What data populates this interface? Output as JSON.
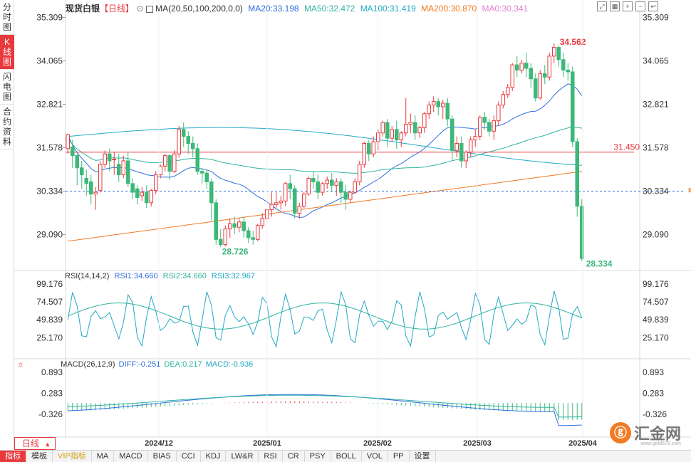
{
  "sidebar": [
    "分时图",
    "K线图",
    "闪电图",
    "合约资料"
  ],
  "active_tab": 1,
  "header": {
    "symbol": "现货白银",
    "period_tag": "【日线】",
    "ma_label": "MA(20,50,100,200,0,0)",
    "ma20": "MA20:33.198",
    "ma50": "MA50:32.472",
    "ma100": "MA100:31.419",
    "ma200": "MA200:30.870",
    "ma0": "MA0:30.341"
  },
  "price_axis": [
    "35.309",
    "34.065",
    "32.821",
    "31.578",
    "30.334",
    "29.090"
  ],
  "marks": {
    "high": "34.562",
    "low_left": "28.726",
    "low_right": "28.334",
    "hline": "31.450",
    "dline": "30.334"
  },
  "rsi": {
    "label": "RSI(14,14,2)",
    "rsi1": "RSI1:34.660",
    "rsi2": "RSI2:34.660",
    "rsi3": "RSI3:32.967",
    "axis": [
      "99.176",
      "74.507",
      "49.839",
      "25.170"
    ]
  },
  "macd": {
    "label": "MACD(26,12,9)",
    "diff": "DIFF:-0.251",
    "dea": "DEA:0.217",
    "macd": "MACD:-0.936",
    "axis": [
      "0.893",
      "0.283",
      "-0.326"
    ]
  },
  "dates": [
    "2024/12",
    "2025/01",
    "2025/02",
    "2025/03",
    "2025/04"
  ],
  "period_button": "日线",
  "indicator_bar": [
    "指标",
    "模板",
    "VIP指标",
    "MA",
    "MACD",
    "BIAS",
    "CCI",
    "KDJ",
    "LW&R",
    "RSI",
    "CR",
    "PSY",
    "BOLL",
    "VOL",
    "PP",
    "设置"
  ],
  "logo": {
    "text": "汇金网",
    "url": "www.gold678.com"
  },
  "colors": {
    "up": "#e8393d",
    "down": "#3cb878",
    "ma20": "#2f6fe0",
    "ma50": "#2fb3a0",
    "ma100": "#22a9c6",
    "ma200": "#f07b24",
    "ma0": "#e080d0",
    "accent": "#e8393d"
  },
  "chart_data": {
    "type": "candlestick",
    "candles": [
      [
        31.55,
        31.98,
        31.95,
        31.4
      ],
      [
        31.6,
        31.8,
        31.35,
        31.0
      ],
      [
        31.35,
        31.4,
        31.0,
        30.5
      ],
      [
        31.0,
        31.2,
        30.8,
        30.4
      ],
      [
        30.7,
        30.95,
        30.55,
        30.2
      ],
      [
        30.6,
        30.8,
        30.25,
        29.95
      ],
      [
        30.25,
        30.45,
        30.3,
        29.8
      ],
      [
        30.35,
        31.2,
        31.1,
        30.3
      ],
      [
        31.1,
        31.5,
        31.4,
        31.0
      ],
      [
        31.4,
        31.55,
        31.2,
        30.9
      ],
      [
        31.25,
        31.45,
        31.25,
        30.8
      ],
      [
        31.1,
        31.4,
        30.8,
        30.6
      ],
      [
        30.8,
        31.35,
        31.2,
        30.7
      ],
      [
        31.2,
        31.45,
        30.55,
        30.45
      ],
      [
        30.55,
        30.7,
        30.3,
        30.1
      ],
      [
        30.4,
        30.5,
        30.15,
        29.95
      ],
      [
        30.2,
        30.45,
        30.3,
        30.05
      ],
      [
        30.3,
        30.5,
        30.0,
        29.85
      ],
      [
        30.0,
        30.4,
        30.35,
        29.9
      ],
      [
        30.35,
        30.9,
        30.8,
        30.25
      ],
      [
        30.8,
        31.1,
        31.05,
        30.7
      ],
      [
        31.05,
        31.4,
        31.35,
        30.9
      ],
      [
        31.35,
        31.4,
        30.9,
        30.65
      ],
      [
        30.9,
        31.5,
        31.4,
        30.85
      ],
      [
        31.4,
        32.2,
        32.1,
        31.3
      ],
      [
        32.1,
        32.3,
        31.9,
        31.6
      ],
      [
        31.9,
        32.05,
        31.7,
        31.4
      ],
      [
        31.7,
        31.9,
        31.55,
        31.3
      ],
      [
        31.55,
        31.7,
        30.9,
        30.8
      ],
      [
        30.9,
        31.0,
        30.85,
        30.55
      ],
      [
        30.85,
        30.95,
        30.6,
        30.4
      ],
      [
        30.6,
        30.7,
        30.0,
        29.5
      ],
      [
        30.0,
        30.1,
        28.95,
        28.8
      ],
      [
        28.95,
        29.25,
        28.8,
        28.726
      ],
      [
        28.8,
        29.35,
        29.25,
        28.75
      ],
      [
        29.25,
        29.55,
        29.4,
        29.0
      ],
      [
        29.4,
        29.6,
        29.3,
        29.1
      ],
      [
        29.3,
        29.55,
        29.45,
        29.15
      ],
      [
        29.45,
        29.6,
        29.2,
        29.0
      ],
      [
        29.2,
        29.3,
        29.0,
        28.85
      ],
      [
        29.0,
        29.2,
        28.95,
        28.8
      ],
      [
        28.95,
        29.4,
        29.35,
        28.9
      ],
      [
        29.35,
        29.7,
        29.55,
        29.25
      ],
      [
        29.55,
        29.8,
        29.8,
        29.5
      ],
      [
        29.8,
        30.3,
        29.95,
        29.6
      ],
      [
        29.95,
        30.3,
        30.0,
        29.85
      ],
      [
        30.0,
        30.2,
        30.05,
        29.8
      ],
      [
        30.05,
        30.6,
        30.55,
        29.9
      ],
      [
        30.55,
        30.8,
        30.4,
        30.1
      ],
      [
        30.4,
        30.5,
        29.7,
        29.55
      ],
      [
        29.7,
        30.0,
        29.9,
        29.55
      ],
      [
        29.9,
        30.3,
        30.25,
        29.85
      ],
      [
        30.25,
        30.75,
        30.7,
        30.2
      ],
      [
        30.7,
        30.9,
        30.6,
        30.4
      ],
      [
        30.6,
        30.8,
        30.3,
        30.1
      ],
      [
        30.3,
        30.6,
        30.55,
        30.2
      ],
      [
        30.55,
        30.75,
        30.65,
        30.4
      ],
      [
        30.65,
        30.85,
        30.5,
        30.3
      ],
      [
        30.5,
        30.7,
        30.6,
        30.2
      ],
      [
        30.6,
        30.7,
        30.3,
        30.0
      ],
      [
        30.3,
        30.5,
        30.1,
        29.8
      ],
      [
        30.1,
        30.35,
        30.3,
        30.0
      ],
      [
        30.3,
        30.7,
        30.6,
        30.25
      ],
      [
        30.6,
        31.2,
        31.1,
        30.5
      ],
      [
        31.1,
        31.75,
        31.7,
        31.0
      ],
      [
        31.7,
        31.8,
        31.4,
        31.2
      ],
      [
        31.4,
        31.9,
        31.75,
        31.3
      ],
      [
        31.75,
        32.1,
        32.0,
        31.5
      ],
      [
        32.0,
        32.35,
        32.3,
        31.9
      ],
      [
        32.3,
        32.4,
        31.85,
        31.6
      ],
      [
        31.85,
        32.2,
        32.1,
        31.75
      ],
      [
        32.1,
        32.35,
        31.8,
        31.55
      ],
      [
        31.8,
        32.05,
        32.0,
        31.6
      ],
      [
        32.0,
        33.0,
        32.25,
        31.9
      ],
      [
        32.25,
        32.55,
        32.3,
        32.0
      ],
      [
        32.3,
        32.5,
        32.0,
        31.8
      ],
      [
        32.0,
        32.2,
        32.15,
        31.85
      ],
      [
        32.15,
        32.6,
        32.55,
        32.0
      ],
      [
        32.55,
        32.9,
        32.8,
        32.4
      ],
      [
        32.8,
        33.05,
        32.9,
        32.6
      ],
      [
        32.9,
        33.0,
        32.75,
        32.5
      ],
      [
        32.75,
        32.95,
        32.85,
        32.4
      ],
      [
        32.85,
        33.0,
        32.4,
        32.2
      ],
      [
        32.4,
        32.5,
        31.5,
        31.2
      ],
      [
        31.5,
        31.9,
        31.7,
        31.3
      ],
      [
        31.7,
        31.9,
        31.2,
        31.0
      ],
      [
        31.2,
        31.5,
        31.45,
        31.0
      ],
      [
        31.45,
        31.9,
        31.8,
        31.3
      ],
      [
        31.8,
        32.1,
        31.9,
        31.6
      ],
      [
        31.9,
        32.5,
        32.45,
        31.8
      ],
      [
        32.45,
        32.6,
        32.3,
        32.1
      ],
      [
        32.3,
        32.4,
        32.05,
        31.9
      ],
      [
        32.05,
        32.5,
        32.35,
        31.8
      ],
      [
        32.35,
        32.9,
        32.8,
        32.2
      ],
      [
        32.8,
        33.2,
        33.1,
        32.7
      ],
      [
        33.1,
        33.4,
        33.3,
        33.0
      ],
      [
        33.3,
        34.0,
        33.95,
        33.2
      ],
      [
        33.95,
        34.2,
        33.8,
        33.6
      ],
      [
        33.8,
        34.1,
        34.0,
        33.7
      ],
      [
        34.0,
        34.3,
        33.85,
        33.6
      ],
      [
        33.85,
        34.0,
        33.55,
        33.3
      ],
      [
        33.55,
        33.7,
        33.0,
        32.9
      ],
      [
        33.0,
        33.8,
        33.7,
        32.95
      ],
      [
        33.7,
        33.95,
        33.6,
        33.4
      ],
      [
        33.6,
        34.3,
        34.2,
        33.5
      ],
      [
        34.2,
        34.562,
        34.45,
        34.0
      ],
      [
        34.45,
        34.5,
        34.1,
        33.9
      ],
      [
        34.1,
        34.3,
        33.8,
        33.6
      ],
      [
        33.8,
        34.0,
        33.75,
        33.5
      ],
      [
        33.75,
        33.9,
        31.75,
        31.6
      ],
      [
        31.75,
        31.85,
        29.9,
        29.6
      ],
      [
        29.9,
        30.1,
        28.4,
        28.334
      ]
    ],
    "ylim": [
      28.334,
      35.309
    ]
  }
}
